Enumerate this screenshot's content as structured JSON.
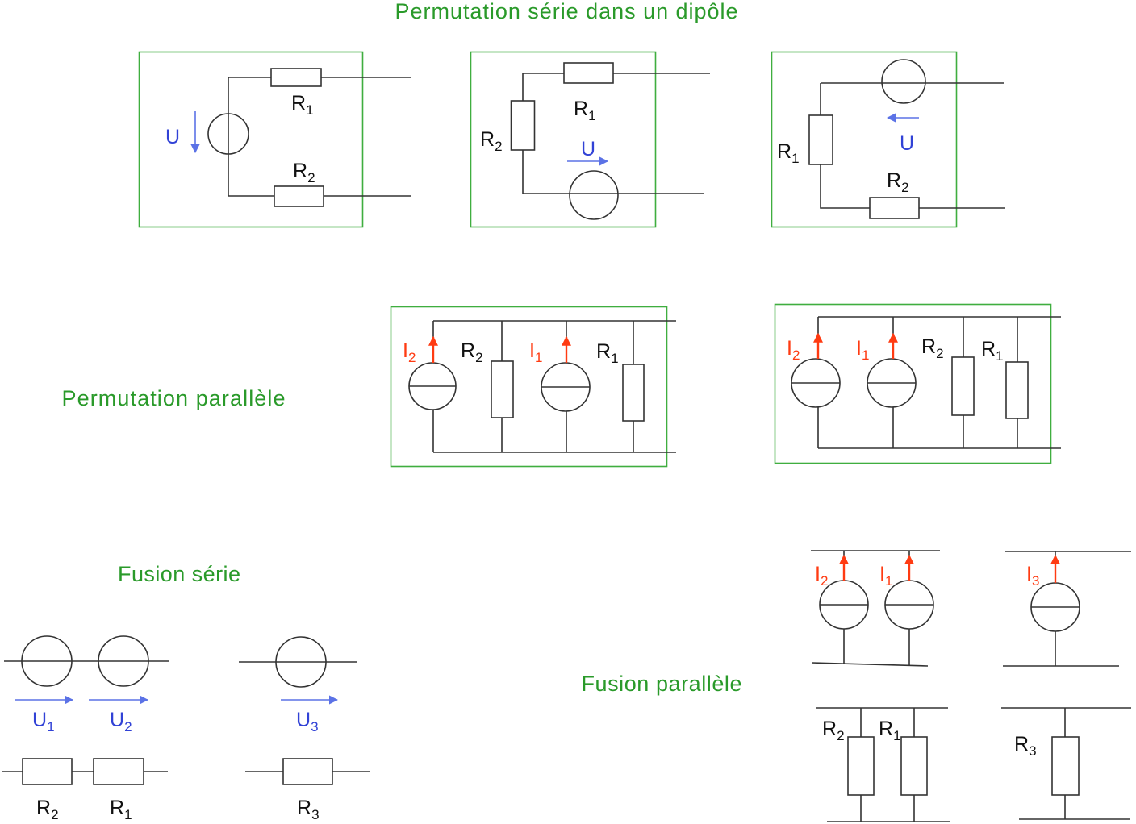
{
  "series_permutation": {
    "title": "Permutation série dans un dipôle",
    "circuits": [
      {
        "u": {
          "base": "U"
        },
        "r1": {
          "base": "R",
          "sub": "1"
        },
        "r2": {
          "base": "R",
          "sub": "2"
        }
      },
      {
        "u": {
          "base": "U"
        },
        "r1": {
          "base": "R",
          "sub": "1"
        },
        "r2": {
          "base": "R",
          "sub": "2"
        }
      },
      {
        "u": {
          "base": "U"
        },
        "r1": {
          "base": "R",
          "sub": "1"
        },
        "r2": {
          "base": "R",
          "sub": "2"
        }
      }
    ]
  },
  "parallel_permutation": {
    "title": "Permutation parallèle",
    "circuits": [
      {
        "i2": {
          "base": "I",
          "sub": "2"
        },
        "r2": {
          "base": "R",
          "sub": "2"
        },
        "i1": {
          "base": "I",
          "sub": "1"
        },
        "r1": {
          "base": "R",
          "sub": "1"
        }
      },
      {
        "i2": {
          "base": "I",
          "sub": "2"
        },
        "i1": {
          "base": "I",
          "sub": "1"
        },
        "r2": {
          "base": "R",
          "sub": "2"
        },
        "r1": {
          "base": "R",
          "sub": "1"
        }
      }
    ]
  },
  "series_fusion": {
    "title": "Fusion série",
    "u1": {
      "base": "U",
      "sub": "1"
    },
    "u2": {
      "base": "U",
      "sub": "2"
    },
    "u3": {
      "base": "U",
      "sub": "3"
    },
    "r2": {
      "base": "R",
      "sub": "2"
    },
    "r1": {
      "base": "R",
      "sub": "1"
    },
    "r3": {
      "base": "R",
      "sub": "3"
    }
  },
  "parallel_fusion": {
    "title": "Fusion parallèle",
    "i2": {
      "base": "I",
      "sub": "2"
    },
    "i1": {
      "base": "I",
      "sub": "1"
    },
    "i3": {
      "base": "I",
      "sub": "3"
    },
    "r2": {
      "base": "R",
      "sub": "2"
    },
    "r1": {
      "base": "R",
      "sub": "1"
    },
    "r3": {
      "base": "R",
      "sub": "3"
    }
  },
  "colors": {
    "title": "#2a9a2a",
    "frame": "#3fae3f",
    "voltage_label": "#3142d6",
    "voltage_arrow": "#5b72e6",
    "current": "#ff3b12",
    "wire": "#333333"
  }
}
